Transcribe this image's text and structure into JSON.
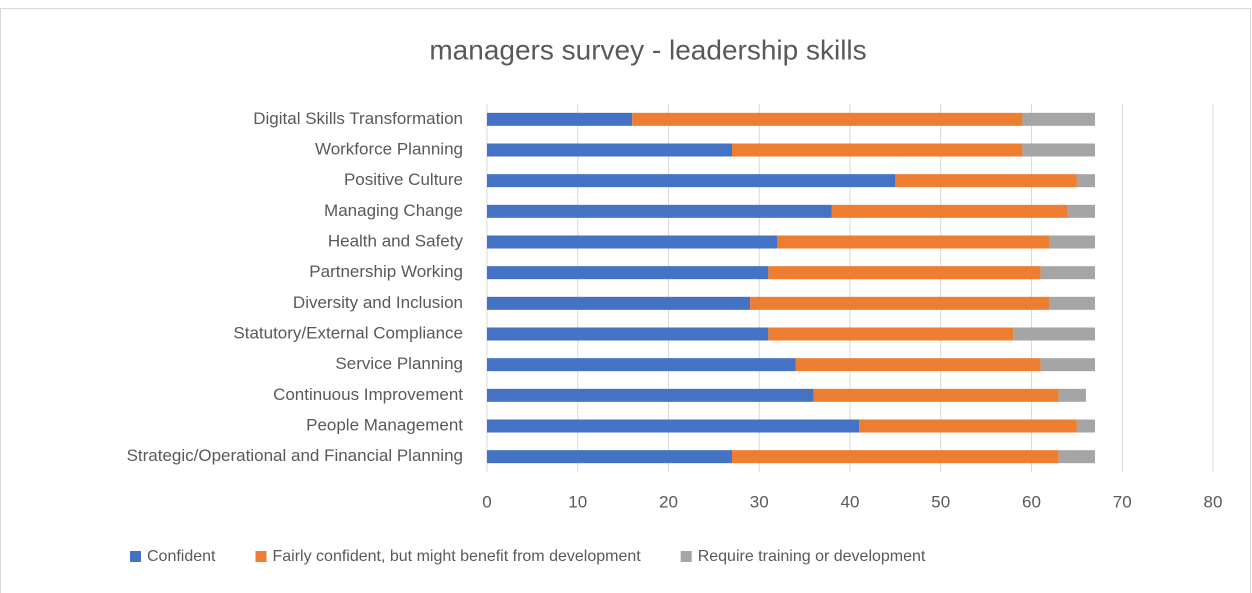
{
  "chart_data": {
    "type": "stacked_bar_horizontal",
    "title": "managers survey - leadership skills",
    "categories": [
      "Digital Skills Transformation",
      "Workforce Planning",
      "Positive Culture",
      "Managing Change",
      "Health and Safety",
      "Partnership Working",
      "Diversity and Inclusion",
      "Statutory/External Compliance",
      "Service Planning",
      "Continuous Improvement",
      "People Management",
      "Strategic/Operational and Financial Planning"
    ],
    "series": [
      {
        "name": "Confident",
        "color": "#4472c4",
        "values": [
          16,
          27,
          45,
          38,
          32,
          31,
          29,
          31,
          34,
          36,
          41,
          27
        ]
      },
      {
        "name": "Fairly confident, but might benefit from development",
        "color": "#ed7d31",
        "values": [
          43,
          32,
          20,
          26,
          30,
          30,
          33,
          27,
          27,
          27,
          24,
          36
        ]
      },
      {
        "name": "Require training or development",
        "color": "#a5a5a5",
        "values": [
          8,
          8,
          2,
          3,
          5,
          6,
          5,
          9,
          6,
          3,
          2,
          4
        ]
      }
    ],
    "xlim": [
      0,
      80
    ],
    "xticks": [
      0,
      10,
      20,
      30,
      40,
      50,
      60,
      70,
      80
    ],
    "grid": true,
    "legend": "bottom"
  }
}
